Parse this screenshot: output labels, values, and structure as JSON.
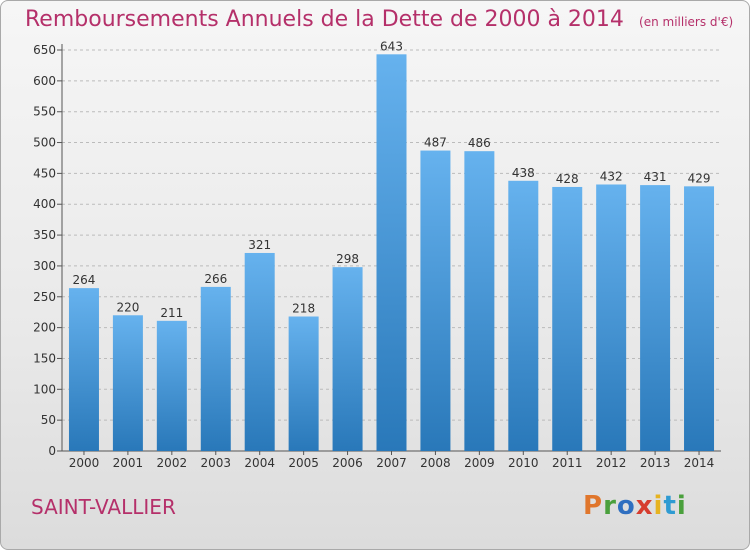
{
  "header": {
    "title": "Remboursements Annuels de la Dette de 2000 à 2014",
    "unit": "(en milliers d'€)"
  },
  "footer": {
    "city": "SAINT-VALLIER",
    "brand_letters": [
      "P",
      "r",
      "o",
      "x",
      "i",
      "t",
      "i"
    ]
  },
  "colors": {
    "bar_light": "#66b2ee",
    "bar_dark": "#2978b9",
    "title": "#b5306a",
    "grid": "#bbbbbb"
  },
  "chart_data": {
    "type": "bar",
    "title": "Remboursements Annuels de la Dette de 2000 à 2014",
    "unit": "(en milliers d'€)",
    "categories": [
      "2000",
      "2001",
      "2002",
      "2003",
      "2004",
      "2005",
      "2006",
      "2007",
      "2008",
      "2009",
      "2010",
      "2011",
      "2012",
      "2013",
      "2014"
    ],
    "values": [
      264,
      220,
      211,
      266,
      321,
      218,
      298,
      643,
      487,
      486,
      438,
      428,
      432,
      431,
      429
    ],
    "ylim": [
      0,
      650
    ],
    "yticks": [
      0,
      50,
      100,
      150,
      200,
      250,
      300,
      350,
      400,
      450,
      500,
      550,
      600,
      650
    ],
    "grid": true,
    "data_labels": true
  }
}
